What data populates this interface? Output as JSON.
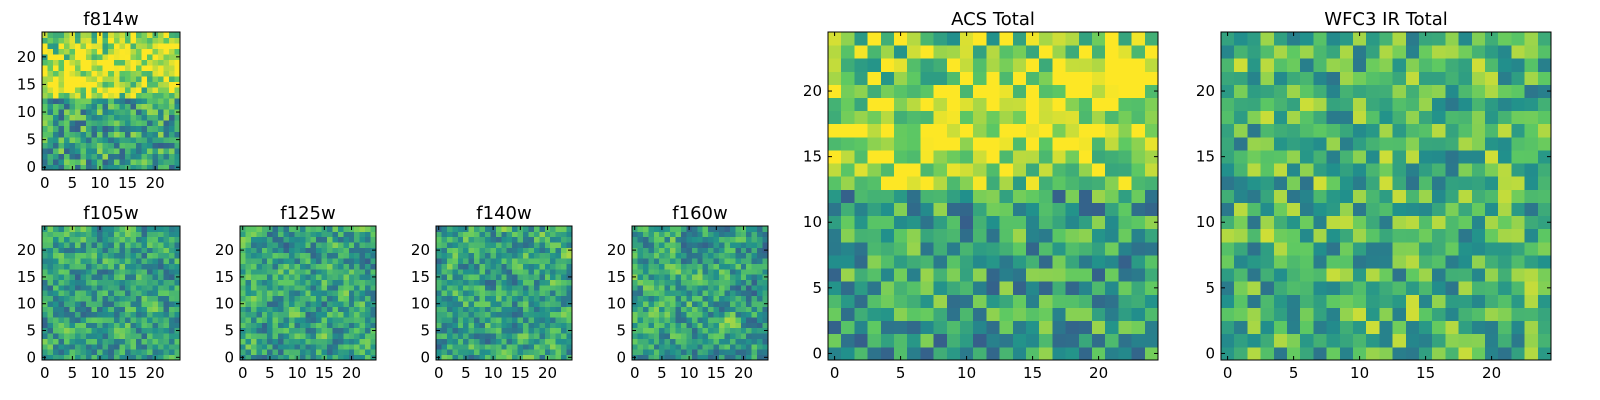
{
  "figure": {
    "palette": [
      "#440154",
      "#3b528b",
      "#21918c",
      "#5ec962",
      "#fde725"
    ]
  },
  "chart_data": [
    {
      "type": "heatmap",
      "title": "f814w",
      "size": 25,
      "xlim": [
        -0.5,
        24.5
      ],
      "ylim": [
        -0.5,
        24.5
      ],
      "xticks": [
        "0",
        "5",
        "10",
        "15",
        "20"
      ],
      "yticks": [
        "0",
        "5",
        "10",
        "15",
        "20"
      ],
      "seed": 11,
      "style": "f814"
    },
    {
      "type": "heatmap",
      "title": "f105w",
      "size": 25,
      "xlim": [
        -0.5,
        24.5
      ],
      "ylim": [
        -0.5,
        24.5
      ],
      "xticks": [
        "0",
        "5",
        "10",
        "15",
        "20"
      ],
      "yticks": [
        "0",
        "5",
        "10",
        "15",
        "20"
      ],
      "seed": 23,
      "style": "smooth"
    },
    {
      "type": "heatmap",
      "title": "f125w",
      "size": 25,
      "xlim": [
        -0.5,
        24.5
      ],
      "ylim": [
        -0.5,
        24.5
      ],
      "xticks": [
        "0",
        "5",
        "10",
        "15",
        "20"
      ],
      "yticks": [
        "0",
        "5",
        "10",
        "15",
        "20"
      ],
      "seed": 37,
      "style": "smooth"
    },
    {
      "type": "heatmap",
      "title": "f140w",
      "size": 25,
      "xlim": [
        -0.5,
        24.5
      ],
      "ylim": [
        -0.5,
        24.5
      ],
      "xticks": [
        "0",
        "5",
        "10",
        "15",
        "20"
      ],
      "yticks": [
        "0",
        "5",
        "10",
        "15",
        "20"
      ],
      "seed": 41,
      "style": "smooth"
    },
    {
      "type": "heatmap",
      "title": "f160w",
      "size": 25,
      "xlim": [
        -0.5,
        24.5
      ],
      "ylim": [
        -0.5,
        24.5
      ],
      "xticks": [
        "0",
        "5",
        "10",
        "15",
        "20"
      ],
      "yticks": [
        "0",
        "5",
        "10",
        "15",
        "20"
      ],
      "seed": 53,
      "style": "smooth"
    },
    {
      "type": "heatmap",
      "title": "ACS Total",
      "size": 25,
      "xlim": [
        -0.5,
        24.5
      ],
      "ylim": [
        -0.5,
        24.5
      ],
      "xticks": [
        "0",
        "5",
        "10",
        "15",
        "20"
      ],
      "yticks": [
        "0",
        "5",
        "10",
        "15",
        "20"
      ],
      "seed": 67,
      "style": "acs"
    },
    {
      "type": "heatmap",
      "title": "WFC3 IR Total",
      "size": 25,
      "xlim": [
        -0.5,
        24.5
      ],
      "ylim": [
        -0.5,
        24.5
      ],
      "xticks": [
        "0",
        "5",
        "10",
        "15",
        "20"
      ],
      "yticks": [
        "0",
        "5",
        "10",
        "15",
        "20"
      ],
      "seed": 79,
      "style": "ir"
    }
  ]
}
